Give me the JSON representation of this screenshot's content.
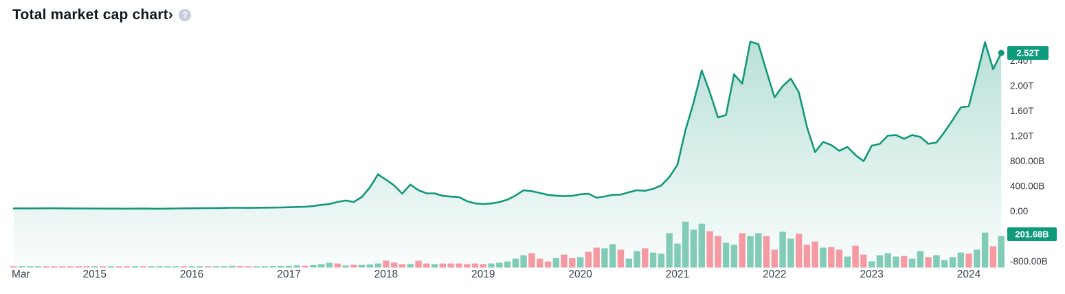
{
  "header": {
    "title": "Total market cap chart",
    "chevron": "›",
    "help_icon_glyph": "?"
  },
  "badges": {
    "line_last_value": "2.52T",
    "histogram_last_value": "201.68B"
  },
  "colors": {
    "line": "#12977b",
    "area_top": "rgba(18,151,123,0.30)",
    "area_bottom": "rgba(18,151,123,0.02)",
    "bar_up": "#82cbb7",
    "bar_down": "#f59aa2",
    "badge_bg": "#0d9b7c",
    "badge_text": "#ffffff",
    "y_axis_text": "#2f353c",
    "x_axis_text": "#39434e",
    "help_icon_bg": "#c8cedb"
  },
  "y_axis": {
    "unit": "USD",
    "ticks": [
      {
        "label": "2.40T",
        "value_b": 2400
      },
      {
        "label": "2.00T",
        "value_b": 2000
      },
      {
        "label": "1.60T",
        "value_b": 1600
      },
      {
        "label": "1.20T",
        "value_b": 1200
      },
      {
        "label": "800.00B",
        "value_b": 800
      },
      {
        "label": "400.00B",
        "value_b": 400
      },
      {
        "label": "0.00",
        "value_b": 0
      },
      {
        "label": "-800.00B",
        "value_b": -800
      }
    ]
  },
  "x_axis": {
    "labels": [
      {
        "text": "Mar",
        "month_index": 0,
        "align": "start"
      },
      {
        "text": "2015",
        "month_index": 10,
        "align": "middle"
      },
      {
        "text": "2016",
        "month_index": 22,
        "align": "middle"
      },
      {
        "text": "2017",
        "month_index": 34,
        "align": "middle"
      },
      {
        "text": "2018",
        "month_index": 46,
        "align": "middle"
      },
      {
        "text": "2019",
        "month_index": 58,
        "align": "middle"
      },
      {
        "text": "2020",
        "month_index": 70,
        "align": "middle"
      },
      {
        "text": "2021",
        "month_index": 82,
        "align": "middle"
      },
      {
        "text": "2022",
        "month_index": 94,
        "align": "middle"
      },
      {
        "text": "2023",
        "month_index": 106,
        "align": "middle"
      },
      {
        "text": "2024",
        "month_index": 118,
        "align": "middle"
      }
    ]
  },
  "chart_data": {
    "type": "area",
    "title": "Total market cap chart",
    "frequency": "monthly",
    "start_month": "2014-03",
    "end_month": "2024-05",
    "unit": "USD billions",
    "legend_position": "none",
    "grid": false,
    "y_range_b": [
      -800,
      2650
    ],
    "series": [
      {
        "name": "Total market cap",
        "type": "area-line",
        "last_value_label": "2.52T",
        "values_b": [
          40,
          41,
          40,
          41,
          42,
          42,
          41,
          40,
          39,
          38,
          37,
          36,
          36,
          36,
          35,
          36,
          37,
          35,
          34,
          36,
          38,
          41,
          42,
          43,
          44,
          45,
          47,
          50,
          49,
          48,
          50,
          52,
          53,
          55,
          58,
          62,
          66,
          78,
          95,
          110,
          143,
          165,
          143,
          220,
          374,
          583,
          496,
          407,
          275,
          420,
          330,
          280,
          279,
          240,
          228,
          220,
          155,
          120,
          110,
          118,
          140,
          180,
          245,
          330,
          315,
          286,
          255,
          242,
          235,
          240,
          264,
          275,
          209,
          230,
          255,
          260,
          297,
          330,
          320,
          352,
          407,
          539,
          737,
          1290,
          1730,
          2240,
          1890,
          1490,
          1530,
          2180,
          2030,
          2700,
          2660,
          2230,
          1810,
          1990,
          2110,
          1890,
          1340,
          937,
          1100,
          1050,
          958,
          1020,
          890,
          793,
          1040,
          1070,
          1200,
          1210,
          1150,
          1210,
          1180,
          1070,
          1090,
          1260,
          1450,
          1650,
          1670,
          2170,
          2690,
          2260,
          2520
        ]
      },
      {
        "name": "Monthly change histogram",
        "type": "bar",
        "last_value_label": "201.68B",
        "note": "sign encodes bar color: positive=green, negative=red",
        "values_b": [
          -9,
          7,
          6,
          7,
          -6,
          -7,
          -8,
          -6,
          -9,
          -7,
          6,
          -8,
          5,
          -7,
          -6,
          6,
          -8,
          5,
          6,
          8,
          7,
          -9,
          7,
          8,
          -6,
          6,
          9,
          12,
          -10,
          -8,
          8,
          9,
          10,
          11,
          12,
          14,
          -12,
          16,
          22,
          30,
          -26,
          13,
          -17,
          17,
          20,
          26,
          -44,
          -31,
          -22,
          22,
          -44,
          -26,
          22,
          -26,
          -26,
          -26,
          -22,
          -26,
          -22,
          26,
          31,
          39,
          57,
          79,
          -92,
          -57,
          -39,
          61,
          -83,
          -61,
          66,
          -101,
          -127,
          123,
          149,
          -114,
          57,
          105,
          -123,
          96,
          88,
          219,
          153,
          293,
          241,
          280,
          -232,
          -201,
          158,
          145,
          -219,
          201,
          219,
          -201,
          -114,
          228,
          184,
          -215,
          -145,
          -166,
          127,
          -131,
          -114,
          70,
          -140,
          -83,
          39,
          79,
          92,
          70,
          -74,
          57,
          105,
          -66,
          79,
          48,
          66,
          96,
          -88,
          114,
          223,
          -136,
          201.68
        ]
      }
    ]
  }
}
